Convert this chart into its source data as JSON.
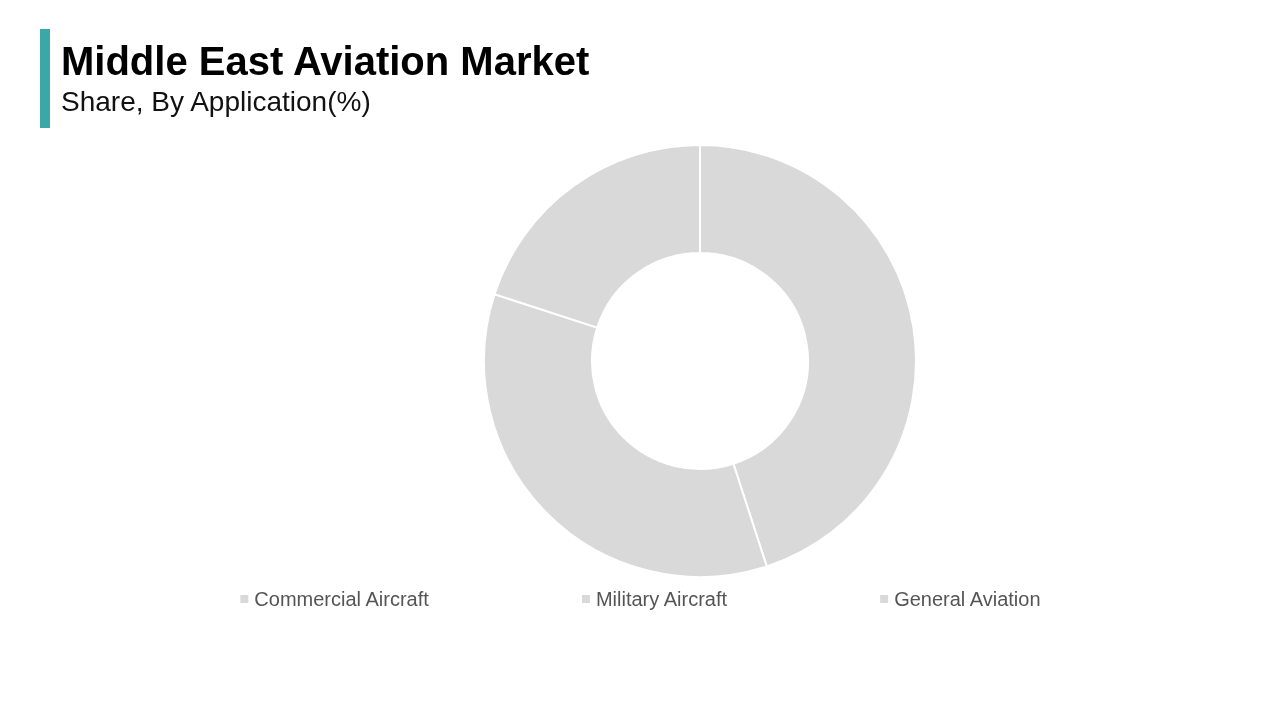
{
  "chart_data": {
    "type": "donut",
    "title": "Middle East Aviation Market",
    "subtitle": "Share, By Application(%)",
    "categories": [
      "Commercial Aircraft",
      "Military Aircraft",
      "General Aviation"
    ],
    "values": [
      45,
      35,
      20
    ],
    "colors": [
      "#d9d9d9",
      "#d9d9d9",
      "#d9d9d9"
    ],
    "legend": "bottom"
  }
}
